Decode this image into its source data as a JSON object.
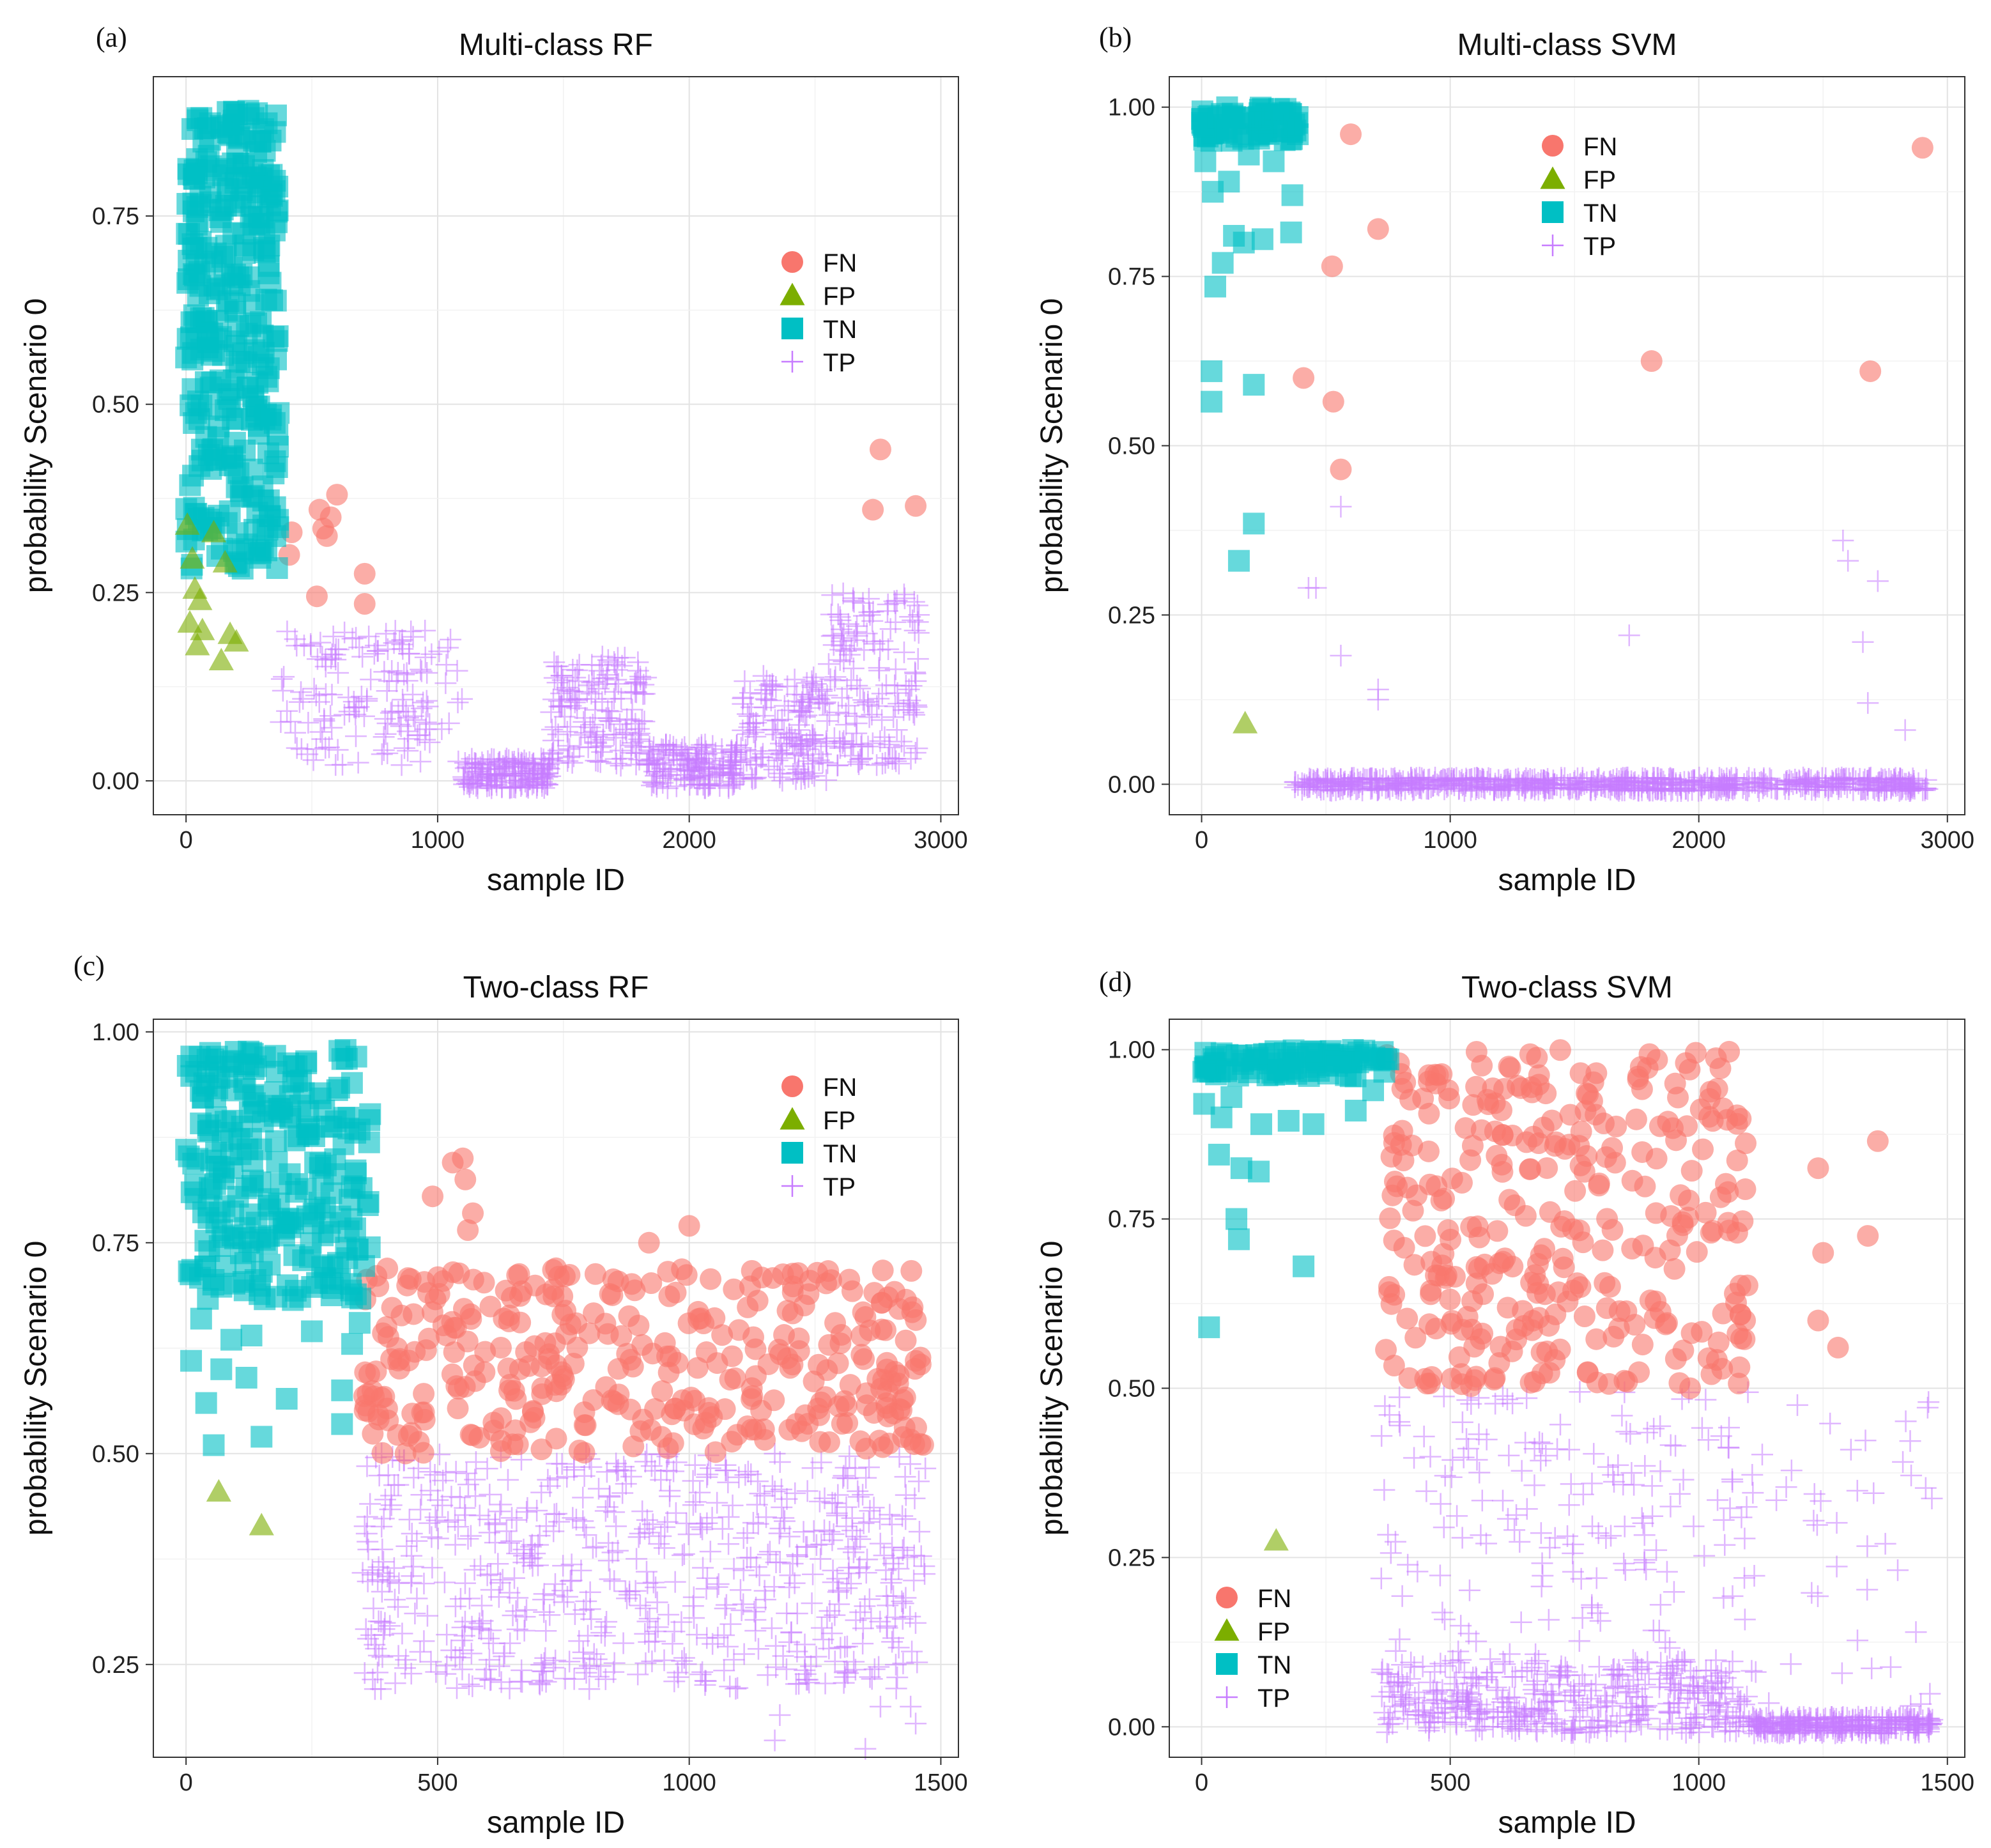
{
  "chart_data": [
    {
      "type": "scatter",
      "panel_label": "(a)",
      "title": "Multi-class RF",
      "xlabel": "sample ID",
      "ylabel": "probability Scenario 0",
      "xlim": [
        -130,
        3070
      ],
      "ylim": [
        -0.045,
        0.935
      ],
      "xticks": [
        0,
        1000,
        2000,
        3000
      ],
      "xtick_labels": [
        "0",
        "1000",
        "2000",
        "3000"
      ],
      "yticks": [
        0.0,
        0.25,
        0.5,
        0.75
      ],
      "ytick_labels": [
        "0.00",
        "0.25",
        "0.50",
        "0.75"
      ],
      "grid": true,
      "legend": {
        "placement": "right-center",
        "entries": [
          "FN",
          "FP",
          "TN",
          "TP"
        ]
      },
      "series": [
        {
          "name": "TN",
          "x_range": [
            0,
            370
          ],
          "y_range": [
            0.28,
            0.89
          ],
          "n": 330,
          "extra_points": [
            [
              45,
              0.88
            ],
            [
              90,
              0.83
            ],
            [
              250,
              0.885
            ],
            [
              270,
              0.85
            ],
            [
              300,
              0.8
            ]
          ]
        },
        {
          "name": "FP",
          "points": [
            [
              5,
              0.34
            ],
            [
              15,
              0.21
            ],
            [
              25,
              0.295
            ],
            [
              35,
              0.255
            ],
            [
              45,
              0.18
            ],
            [
              55,
              0.24
            ],
            [
              65,
              0.2
            ],
            [
              110,
              0.33
            ],
            [
              140,
              0.16
            ],
            [
              155,
              0.29
            ],
            [
              175,
              0.195
            ],
            [
              200,
              0.185
            ]
          ]
        },
        {
          "name": "FN",
          "points": [
            [
              410,
              0.3
            ],
            [
              420,
              0.33
            ],
            [
              520,
              0.245
            ],
            [
              530,
              0.36
            ],
            [
              545,
              0.335
            ],
            [
              560,
              0.325
            ],
            [
              575,
              0.35
            ],
            [
              600,
              0.38
            ],
            [
              710,
              0.275
            ],
            [
              710,
              0.235
            ],
            [
              2730,
              0.36
            ],
            [
              2760,
              0.44
            ],
            [
              2900,
              0.365
            ]
          ]
        },
        {
          "name": "TP",
          "bands": [
            {
              "x": [
                370,
                1100
              ],
              "y": [
                0.02,
                0.2
              ]
            },
            {
              "x": [
                1100,
                1450
              ],
              "y": [
                -0.01,
                0.03
              ]
            },
            {
              "x": [
                1450,
                1830
              ],
              "y": [
                0.02,
                0.17
              ]
            },
            {
              "x": [
                1830,
                2200
              ],
              "y": [
                -0.01,
                0.05
              ]
            },
            {
              "x": [
                2200,
                2550
              ],
              "y": [
                0.0,
                0.14
              ]
            },
            {
              "x": [
                2550,
                2920
              ],
              "y": [
                0.02,
                0.25
              ]
            }
          ],
          "n": 900
        }
      ]
    },
    {
      "type": "scatter",
      "panel_label": "(b)",
      "title": "Multi-class SVM",
      "xlabel": "sample ID",
      "ylabel": "probability Scenario 0",
      "xlim": [
        -130,
        3070
      ],
      "ylim": [
        -0.045,
        1.045
      ],
      "xticks": [
        0,
        1000,
        2000,
        3000
      ],
      "xtick_labels": [
        "0",
        "1000",
        "2000",
        "3000"
      ],
      "yticks": [
        0.0,
        0.25,
        0.5,
        0.75,
        1.0
      ],
      "ytick_labels": [
        "0.00",
        "0.25",
        "0.50",
        "0.75",
        "1.00"
      ],
      "grid": true,
      "legend": {
        "placement": "top-right",
        "entries": [
          "FN",
          "FP",
          "TN",
          "TP"
        ]
      },
      "series": [
        {
          "name": "TN",
          "x_range": [
            0,
            390
          ],
          "y_range": [
            0.95,
            1.0
          ],
          "n": 80,
          "extra_points": [
            [
              15,
              0.92
            ],
            [
              45,
              0.875
            ],
            [
              55,
              0.735
            ],
            [
              85,
              0.77
            ],
            [
              110,
              0.89
            ],
            [
              130,
              0.81
            ],
            [
              170,
              0.8
            ],
            [
              190,
              0.93
            ],
            [
              245,
              0.805
            ],
            [
              290,
              0.92
            ],
            [
              360,
              0.815
            ],
            [
              365,
              0.87
            ],
            [
              40,
              0.61
            ],
            [
              40,
              0.565
            ],
            [
              210,
              0.59
            ],
            [
              150,
              0.33
            ],
            [
              210,
              0.385
            ]
          ]
        },
        {
          "name": "FP",
          "points": [
            [
              175,
              0.09
            ]
          ]
        },
        {
          "name": "FN",
          "points": [
            [
              600,
              0.96
            ],
            [
              525,
              0.765
            ],
            [
              710,
              0.82
            ],
            [
              410,
              0.6
            ],
            [
              530,
              0.565
            ],
            [
              560,
              0.465
            ],
            [
              1810,
              0.625
            ],
            [
              2690,
              0.61
            ],
            [
              2900,
              0.94
            ]
          ]
        },
        {
          "name": "TP",
          "x_range": [
            370,
            2920
          ],
          "y_range": [
            -0.01,
            0.01
          ],
          "n": 700,
          "extra_points": [
            [
              460,
              0.29
            ],
            [
              430,
              0.29
            ],
            [
              560,
              0.41
            ],
            [
              560,
              0.19
            ],
            [
              710,
              0.14
            ],
            [
              710,
              0.125
            ],
            [
              1720,
              0.22
            ],
            [
              2580,
              0.36
            ],
            [
              2600,
              0.33
            ],
            [
              2660,
              0.21
            ],
            [
              2720,
              0.3
            ],
            [
              2680,
              0.12
            ],
            [
              2830,
              0.08
            ]
          ]
        }
      ]
    },
    {
      "type": "scatter",
      "panel_label": "(c)",
      "title": "Two-class RF",
      "xlabel": "sample ID",
      "ylabel": "probability Scenario 0",
      "xlim": [
        -65,
        1535
      ],
      "ylim": [
        0.14,
        1.015
      ],
      "xticks": [
        0,
        500,
        1000,
        1500
      ],
      "xtick_labels": [
        "0",
        "500",
        "1000",
        "1500"
      ],
      "yticks": [
        0.25,
        0.5,
        0.75,
        1.0
      ],
      "ytick_labels": [
        "0.25",
        "0.50",
        "0.75",
        "1.00"
      ],
      "grid": true,
      "legend": {
        "placement": "top-right",
        "entries": [
          "FN",
          "FP",
          "TN",
          "TP"
        ]
      },
      "series": [
        {
          "name": "TN",
          "x_range": [
            0,
            370
          ],
          "y_range": [
            0.68,
            0.98
          ],
          "n": 260,
          "extra_points": [
            [
              10,
              0.61
            ],
            [
              40,
              0.56
            ],
            [
              55,
              0.51
            ],
            [
              70,
              0.6
            ],
            [
              130,
              0.64
            ],
            [
              150,
              0.52
            ],
            [
              200,
              0.565
            ],
            [
              250,
              0.645
            ],
            [
              310,
              0.575
            ],
            [
              310,
              0.535
            ],
            [
              330,
              0.63
            ],
            [
              345,
              0.655
            ],
            [
              120,
              0.59
            ],
            [
              30,
              0.66
            ],
            [
              90,
              0.635
            ]
          ]
        },
        {
          "name": "FP",
          "points": [
            [
              65,
              0.455
            ],
            [
              150,
              0.415
            ]
          ]
        },
        {
          "name": "FN",
          "x_range": [
            350,
            1470
          ],
          "y_range": [
            0.5,
            0.72
          ],
          "n": 360,
          "extra_points": [
            [
              490,
              0.805
            ],
            [
              530,
              0.845
            ],
            [
              550,
              0.85
            ],
            [
              555,
              0.825
            ],
            [
              570,
              0.785
            ],
            [
              560,
              0.765
            ],
            [
              1000,
              0.77
            ],
            [
              920,
              0.75
            ],
            [
              1240,
              0.705
            ],
            [
              1290,
              0.655
            ],
            [
              1450,
              0.61
            ]
          ]
        },
        {
          "name": "TP",
          "x_range": [
            350,
            1470
          ],
          "y_range": [
            0.22,
            0.5
          ],
          "n": 650,
          "extra_points": [
            [
              1170,
              0.16
            ],
            [
              1180,
              0.19
            ],
            [
              1350,
              0.15
            ],
            [
              1450,
              0.18
            ],
            [
              1380,
              0.2
            ],
            [
              1440,
              0.2
            ]
          ]
        }
      ]
    },
    {
      "type": "scatter",
      "panel_label": "(d)",
      "title": "Two-class SVM",
      "xlabel": "sample ID",
      "ylabel": "probability Scenario 0",
      "xlim": [
        -65,
        1535
      ],
      "ylim": [
        -0.045,
        1.045
      ],
      "xticks": [
        0,
        500,
        1000,
        1500
      ],
      "xtick_labels": [
        "0",
        "500",
        "1000",
        "1500"
      ],
      "yticks": [
        0.0,
        0.25,
        0.5,
        0.75,
        1.0
      ],
      "ytick_labels": [
        "0.00",
        "0.25",
        "0.50",
        "0.75",
        "1.00"
      ],
      "grid": true,
      "legend": {
        "placement": "bottom-left",
        "entries": [
          "FN",
          "FP",
          "TN",
          "TP"
        ]
      },
      "series": [
        {
          "name": "TN",
          "x_range": [
            0,
            380
          ],
          "y_range": [
            0.96,
            1.0
          ],
          "n": 90,
          "extra_points": [
            [
              5,
              0.92
            ],
            [
              15,
              0.59
            ],
            [
              35,
              0.845
            ],
            [
              40,
              0.9
            ],
            [
              60,
              0.93
            ],
            [
              70,
              0.75
            ],
            [
              75,
              0.72
            ],
            [
              80,
              0.825
            ],
            [
              115,
              0.82
            ],
            [
              120,
              0.89
            ],
            [
              175,
              0.895
            ],
            [
              205,
              0.68
            ],
            [
              225,
              0.89
            ],
            [
              310,
              0.91
            ],
            [
              345,
              0.94
            ]
          ]
        },
        {
          "name": "FP",
          "points": [
            [
              150,
              0.275
            ]
          ]
        },
        {
          "name": "FN",
          "x_range": [
            370,
            1100
          ],
          "y_range": [
            0.5,
            1.0
          ],
          "n": 330,
          "extra_points": [
            [
              1240,
              0.825
            ],
            [
              1250,
              0.7
            ],
            [
              1240,
              0.6
            ],
            [
              1280,
              0.56
            ],
            [
              1340,
              0.725
            ],
            [
              1360,
              0.865
            ]
          ]
        },
        {
          "name": "TP",
          "bands": [
            {
              "x": [
                360,
                1100
              ],
              "y": [
                -0.01,
                0.1
              ],
              "n": 380
            },
            {
              "x": [
                360,
                1100
              ],
              "y": [
                0.1,
                0.5
              ],
              "n": 170
            },
            {
              "x": [
                1100,
                1470
              ],
              "y": [
                -0.01,
                0.015
              ],
              "n": 260
            },
            {
              "x": [
                1100,
                1470
              ],
              "y": [
                0.02,
                0.48
              ],
              "n": 45
            }
          ]
        }
      ]
    }
  ],
  "colors": {
    "FN": "#F8766D",
    "FP": "#7CAE00",
    "TN": "#00BFC4",
    "TP": "#C77CFF"
  }
}
